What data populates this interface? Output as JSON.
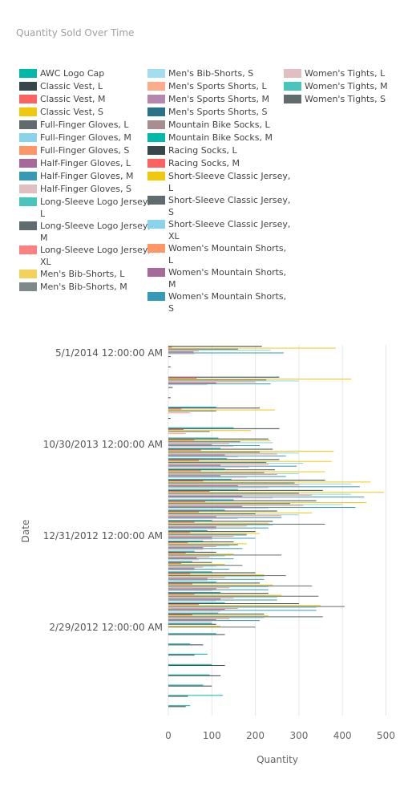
{
  "chart_data": {
    "type": "bar",
    "orientation": "horizontal",
    "title": "Quantity Sold Over Time",
    "xlabel": "Quantity",
    "ylabel": "Date",
    "xlim": [
      0,
      500
    ],
    "xticks": [
      0,
      100,
      200,
      300,
      400,
      500
    ],
    "y_tick_labels": [
      "5/1/2014 12:00:00 AM",
      "10/30/2013 12:00:00 AM",
      "12/31/2012 12:00:00 AM",
      "2/29/2012 12:00:00 AM"
    ],
    "grid": true,
    "legend_position": "top",
    "series": [
      {
        "name": "AWC Logo Cap",
        "color": "#01B8AA"
      },
      {
        "name": "Classic Vest, L",
        "color": "#374649"
      },
      {
        "name": "Classic Vest, M",
        "color": "#FD625E"
      },
      {
        "name": "Classic Vest, S",
        "color": "#F2C80F"
      },
      {
        "name": "Full-Finger Gloves, L",
        "color": "#5F6B6D"
      },
      {
        "name": "Full-Finger Gloves, M",
        "color": "#8AD4EB"
      },
      {
        "name": "Full-Finger Gloves, S",
        "color": "#FE9666"
      },
      {
        "name": "Half-Finger Gloves, L",
        "color": "#A66999"
      },
      {
        "name": "Half-Finger Gloves, M",
        "color": "#3599B8"
      },
      {
        "name": "Half-Finger Gloves, S",
        "color": "#DFBFBF"
      },
      {
        "name": "Long-Sleeve Logo Jersey,\nL",
        "color": "#4AC5BB"
      },
      {
        "name": "Long-Sleeve Logo Jersey,\nM",
        "color": "#5F6B6D"
      },
      {
        "name": "Long-Sleeve Logo Jersey,\nXL",
        "color": "#FB8281"
      },
      {
        "name": "Men's Bib-Shorts, L",
        "color": "#F4D25A"
      },
      {
        "name": "Men's Bib-Shorts, M",
        "color": "#7F898A"
      },
      {
        "name": "Men's Bib-Shorts, S",
        "color": "#A4DDEE"
      },
      {
        "name": "Men's Sports Shorts, L",
        "color": "#FDAB89"
      },
      {
        "name": "Men's Sports Shorts, M",
        "color": "#B687AC"
      },
      {
        "name": "Men's Sports Shorts, S",
        "color": "#28738A"
      },
      {
        "name": "Mountain Bike Socks, L",
        "color": "#A78F8F"
      },
      {
        "name": "Mountain Bike Socks, M",
        "color": "#01B8AA"
      },
      {
        "name": "Racing Socks, L",
        "color": "#374649"
      },
      {
        "name": "Racing Socks, M",
        "color": "#FD625E"
      },
      {
        "name": "Short-Sleeve Classic Jersey,\nL",
        "color": "#F2C80F"
      },
      {
        "name": "Short-Sleeve Classic Jersey,\nS",
        "color": "#5F6B6D"
      },
      {
        "name": "Short-Sleeve Classic Jersey,\nXL",
        "color": "#8AD4EB"
      },
      {
        "name": "Women's Mountain Shorts,\nL",
        "color": "#FE9666"
      },
      {
        "name": "Women's Mountain Shorts,\nM",
        "color": "#A66999"
      },
      {
        "name": "Women's Mountain Shorts,\nS",
        "color": "#3599B8"
      },
      {
        "name": "Women's Tights, L",
        "color": "#DFBFBF"
      },
      {
        "name": "Women's Tights, M",
        "color": "#4AC5BB"
      },
      {
        "name": "Women's Tights, S",
        "color": "#5F6B6D"
      }
    ],
    "bar_groups": [
      [
        0,
        215,
        8,
        385,
        160,
        235,
        70,
        58,
        265,
        60
      ],
      [
        0,
        5,
        0,
        0,
        0,
        0,
        0,
        0,
        0,
        0
      ],
      [
        0,
        5,
        0,
        0,
        0,
        0,
        0,
        0,
        0,
        0
      ],
      [
        0,
        255,
        65,
        420,
        225,
        300,
        200,
        110,
        235,
        90
      ],
      [
        0,
        10,
        0,
        0,
        0,
        0,
        0,
        0,
        0,
        0
      ],
      [
        0,
        5,
        0,
        0,
        0,
        0,
        0,
        0,
        0,
        0
      ],
      [
        110,
        210,
        30,
        245,
        110,
        0,
        50,
        0,
        0,
        0
      ],
      [
        0,
        5,
        0,
        0,
        0,
        0,
        0,
        0,
        0,
        0
      ],
      [
        150,
        255,
        35,
        190,
        95,
        0,
        40,
        0,
        0,
        0
      ],
      [
        115,
        230,
        60,
        235,
        165,
        240,
        140,
        100,
        210,
        150
      ],
      [
        120,
        240,
        75,
        380,
        210,
        300,
        250,
        130,
        270,
        160
      ],
      [
        135,
        255,
        70,
        375,
        225,
        310,
        230,
        120,
        295,
        185
      ],
      [
        130,
        245,
        75,
        360,
        220,
        300,
        250,
        120,
        270,
        180
      ],
      [
        145,
        360,
        80,
        465,
        290,
        420,
        300,
        160,
        440,
        230
      ],
      [
        160,
        355,
        95,
        495,
        300,
        420,
        330,
        170,
        450,
        240
      ],
      [
        150,
        340,
        85,
        455,
        280,
        400,
        310,
        170,
        430,
        230
      ],
      [
        130,
        250,
        70,
        330,
        200,
        300,
        260,
        110,
        260,
        160
      ],
      [
        100,
        240,
        60,
        230,
        360,
        240,
        180,
        110,
        230,
        110
      ],
      [
        90,
        200,
        50,
        210,
        180,
        180,
        150,
        100,
        200,
        100
      ],
      [
        80,
        150,
        45,
        180,
        160,
        140,
        110,
        80,
        170,
        80
      ],
      [
        60,
        110,
        40,
        150,
        260,
        130,
        95,
        65,
        150,
        70
      ],
      [
        55,
        100,
        30,
        130,
        170,
        110,
        80,
        60,
        140,
        60
      ],
      [
        100,
        200,
        50,
        220,
        270,
        220,
        130,
        90,
        220,
        90
      ],
      [
        110,
        210,
        55,
        240,
        330,
        230,
        140,
        110,
        230,
        100
      ],
      [
        120,
        230,
        60,
        260,
        345,
        250,
        150,
        120,
        250,
        110
      ],
      [
        130,
        300,
        70,
        350,
        405,
        340,
        160,
        130,
        340,
        120
      ],
      [
        115,
        220,
        55,
        230,
        355,
        220,
        140,
        110,
        210,
        100
      ],
      [
        100,
        110,
        0,
        120,
        200,
        0,
        0,
        0,
        0,
        0
      ],
      [
        110,
        130,
        0,
        0,
        0,
        0,
        0,
        0,
        0,
        0
      ],
      [
        50,
        80,
        0,
        0,
        0,
        0,
        0,
        0,
        0,
        0
      ],
      [
        90,
        60,
        0,
        0,
        0,
        0,
        0,
        0,
        0,
        0
      ],
      [
        100,
        130,
        0,
        0,
        0,
        0,
        0,
        0,
        0,
        0
      ],
      [
        95,
        120,
        0,
        0,
        0,
        0,
        0,
        0,
        0,
        0
      ],
      [
        80,
        100,
        0,
        0,
        0,
        0,
        0,
        0,
        0,
        0
      ],
      [
        125,
        45,
        0,
        0,
        0,
        0,
        0,
        0,
        0,
        0
      ],
      [
        50,
        40,
        0,
        0,
        0,
        0,
        0,
        0,
        0,
        0
      ]
    ]
  }
}
